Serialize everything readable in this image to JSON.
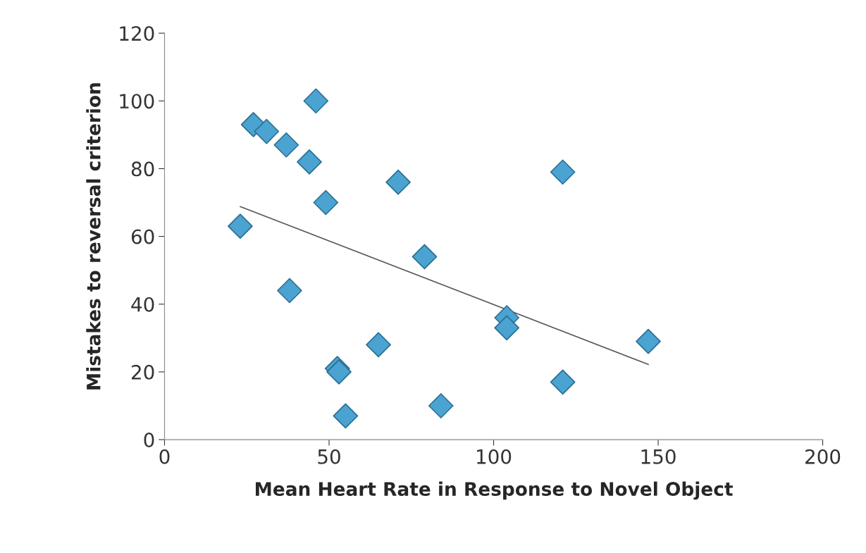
{
  "chart_data": {
    "type": "scatter",
    "xlabel": "Mean Heart Rate in Response to Novel Object",
    "ylabel": "Mistakes to reversal criterion",
    "xlim": [
      0,
      200
    ],
    "xticks": [
      0,
      50,
      100,
      150,
      200
    ],
    "ylim": [
      0,
      120
    ],
    "yticks": [
      0,
      20,
      40,
      60,
      80,
      100,
      120
    ],
    "grid": false,
    "legend": false,
    "marker": "diamond",
    "series": [
      {
        "color": "#4aa3d0",
        "x": [
          23,
          27,
          31,
          37,
          38,
          44,
          46,
          49,
          52.5,
          53,
          55,
          65,
          71,
          79,
          84,
          104,
          104,
          121,
          121,
          147
        ],
        "values": [
          63,
          93,
          91,
          87,
          44,
          82,
          100,
          70,
          21,
          20,
          7,
          28,
          76,
          54,
          10,
          36,
          33,
          79,
          17,
          29
        ]
      },
      {
        "type": "line",
        "color": "#555555",
        "marker": "none",
        "line_style": "solid",
        "x": [
          23,
          147
        ],
        "values": [
          68.8,
          22.2
        ]
      }
    ]
  }
}
